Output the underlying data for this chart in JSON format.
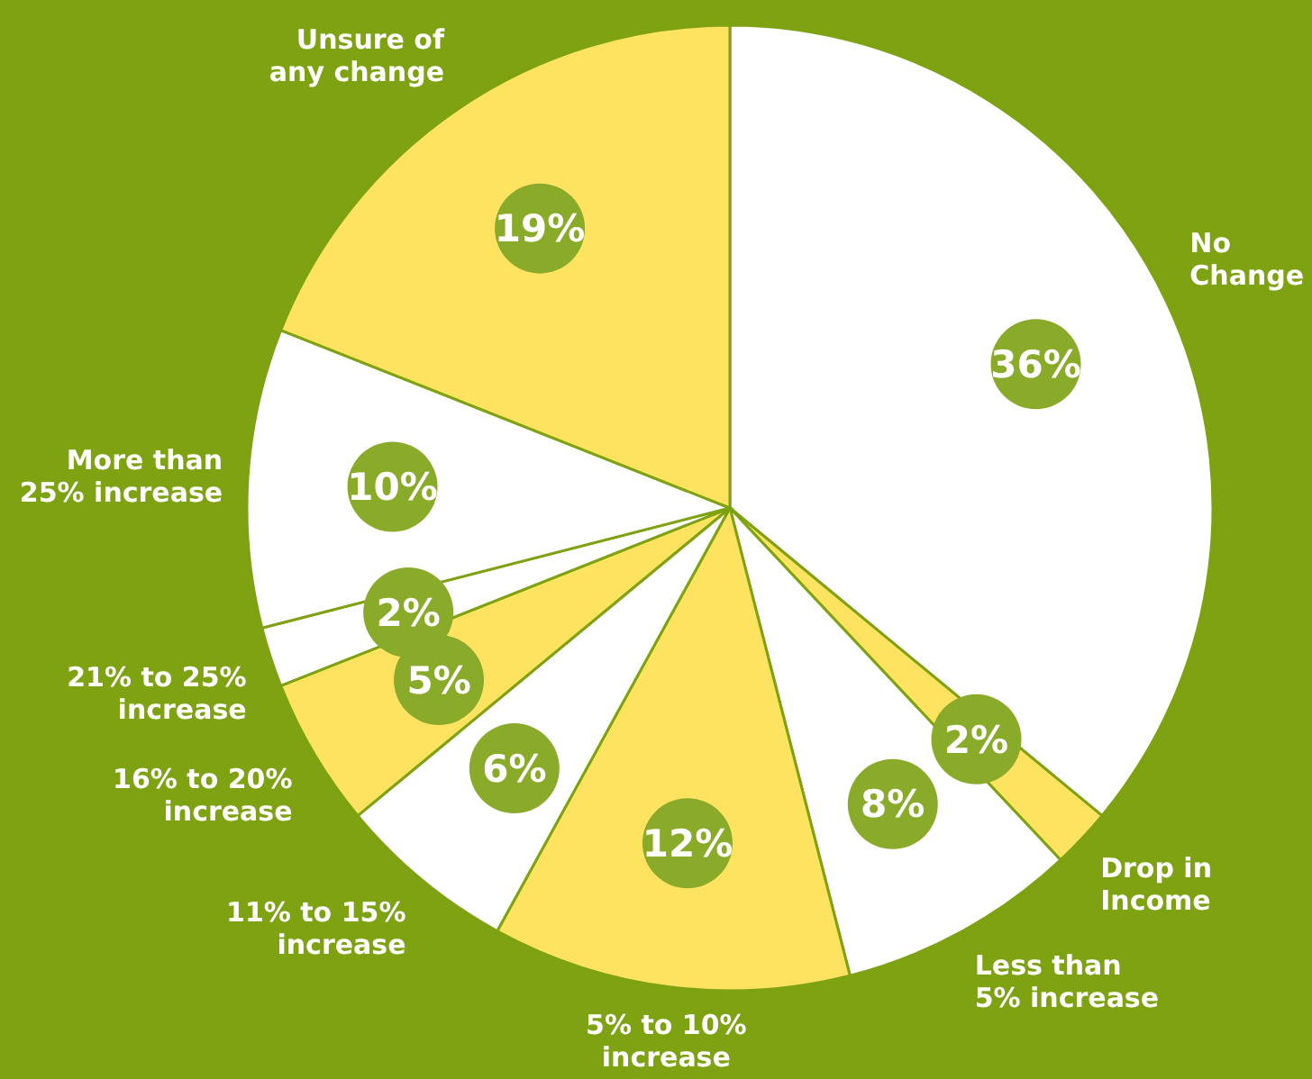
{
  "chart_data": {
    "type": "pie",
    "categories": [
      "No Change",
      "Drop in Income",
      "Less than 5% increase",
      "5% to 10% increase",
      "11% to 15% increase",
      "16% to 20% increase",
      "21% to 25% increase",
      "More than 25% increase",
      "Unsure of any change"
    ],
    "values": [
      36,
      2,
      8,
      12,
      6,
      5,
      2,
      10,
      19
    ],
    "value_labels": [
      "36%",
      "2%",
      "8%",
      "12%",
      "6%",
      "5%",
      "2%",
      "10%",
      "19%"
    ],
    "colors": [
      "#ffffff",
      "#fde35f",
      "#ffffff",
      "#fde35f",
      "#ffffff",
      "#fde35f",
      "#ffffff",
      "#ffffff",
      "#fde35f"
    ]
  }
}
